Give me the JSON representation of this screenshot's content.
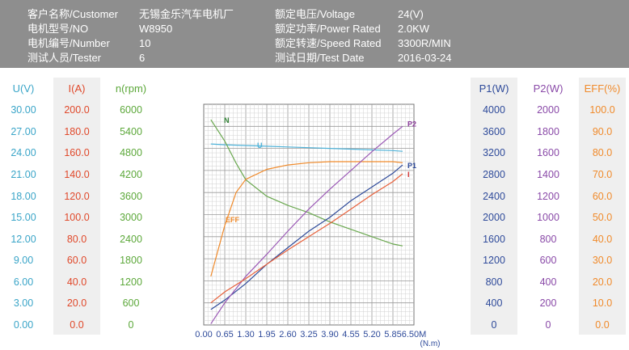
{
  "header": {
    "rows": [
      {
        "l1": "客户名称/Customer",
        "v1": "无锡金乐汽车电机厂",
        "l2": "额定电压/Voltage",
        "v2": "24(V)"
      },
      {
        "l1": "电机型号/NO",
        "v1": "W8950",
        "l2": "额定功率/Power Rated",
        "v2": "2.0KW"
      },
      {
        "l1": "电机编号/Number",
        "v1": "10",
        "l2": "额定转速/Speed Rated",
        "v2": "3300R/MIN"
      },
      {
        "l1": "测试人员/Tester",
        "v1": "6",
        "l2": "测试日期/Test Date",
        "v2": "2016-03-24"
      }
    ]
  },
  "left_columns": [
    {
      "title": "U(V)",
      "color": "#3aa5c8",
      "bg": "#ffffff",
      "values": [
        "30.00",
        "27.00",
        "24.00",
        "21.00",
        "18.00",
        "15.00",
        "12.00",
        "9.00",
        "6.00",
        "3.00",
        "0.00"
      ]
    },
    {
      "title": "I(A)",
      "color": "#e0482a",
      "bg": "#efefef",
      "values": [
        "200.0",
        "180.0",
        "160.0",
        "140.0",
        "120.0",
        "100.0",
        "80.0",
        "60.0",
        "40.0",
        "20.0",
        "0.0"
      ]
    },
    {
      "title": "n(rpm)",
      "color": "#5ca83a",
      "bg": "#ffffff",
      "values": [
        "6000",
        "5400",
        "4800",
        "4200",
        "3600",
        "3000",
        "2400",
        "1800",
        "1200",
        "600",
        "0"
      ]
    }
  ],
  "right_columns": [
    {
      "title": "P1(W)",
      "color": "#2e4a9a",
      "bg": "#efefef",
      "values": [
        "4000",
        "3600",
        "3200",
        "2800",
        "2400",
        "2000",
        "1600",
        "1200",
        "800",
        "400",
        "0"
      ]
    },
    {
      "title": "P2(W)",
      "color": "#8a4aa8",
      "bg": "#ffffff",
      "values": [
        "2000",
        "1800",
        "1600",
        "1400",
        "1200",
        "1000",
        "800",
        "600",
        "400",
        "200",
        "0"
      ]
    },
    {
      "title": "EFF(%)",
      "color": "#f08a2a",
      "bg": "#efefef",
      "values": [
        "100.0",
        "90.0",
        "80.0",
        "70.0",
        "60.0",
        "50.0",
        "40.0",
        "30.0",
        "20.0",
        "10.0",
        "0.0"
      ]
    }
  ],
  "chart_data": {
    "type": "line",
    "xlabel": "(N.m)",
    "x_ticks": [
      "0.00",
      "0.65",
      "1.30",
      "1.95",
      "2.60",
      "3.25",
      "3.90",
      "4.55",
      "5.20",
      "5.85",
      "6.50M"
    ],
    "xlim": [
      0,
      6.5
    ],
    "grid": true,
    "series": [
      {
        "name": "U",
        "color": "#4fb3d9",
        "label_color": "#4fb3d9",
        "x": [
          0.22,
          0.65,
          1.3,
          1.95,
          2.6,
          3.25,
          3.9,
          4.55,
          5.2,
          5.85,
          6.15
        ],
        "y": [
          24.6,
          24.5,
          24.4,
          24.3,
          24.2,
          24.1,
          24.0,
          23.9,
          23.8,
          23.7,
          23.6
        ]
      },
      {
        "name": "N",
        "color": "#6aa84f",
        "label_color": "#2e7d32",
        "x": [
          0.22,
          0.65,
          1.0,
          1.3,
          1.95,
          2.6,
          3.25,
          3.9,
          4.55,
          5.2,
          5.85,
          6.15
        ],
        "y": [
          5580,
          5000,
          4400,
          3950,
          3500,
          3250,
          3050,
          2800,
          2600,
          2400,
          2200,
          2150
        ]
      },
      {
        "name": "EFF",
        "color": "#f08a2a",
        "label_color": "#f08a2a",
        "x": [
          0.22,
          0.65,
          1.0,
          1.3,
          1.95,
          2.6,
          3.25,
          3.9,
          4.55,
          5.2,
          5.85,
          6.15
        ],
        "y": [
          22,
          45,
          60,
          66,
          70.5,
          72.5,
          73.5,
          74,
          74,
          74,
          74,
          73.5
        ]
      },
      {
        "name": "P1",
        "color": "#2e4a9a",
        "label_color": "#2e4a9a",
        "x": [
          0.22,
          0.65,
          1.3,
          1.95,
          2.6,
          3.25,
          3.9,
          4.55,
          5.2,
          5.85,
          6.15
        ],
        "y": [
          280,
          450,
          750,
          1100,
          1400,
          1700,
          1950,
          2250,
          2500,
          2750,
          2900
        ]
      },
      {
        "name": "P2",
        "color": "#9b59b6",
        "label_color": "#8a3a9a",
        "x": [
          0.22,
          0.65,
          1.3,
          1.95,
          2.6,
          3.25,
          3.9,
          4.55,
          5.2,
          5.85,
          6.15
        ],
        "y": [
          10,
          200,
          440,
          640,
          850,
          1050,
          1230,
          1400,
          1570,
          1730,
          1800
        ]
      },
      {
        "name": "I",
        "color": "#e8603a",
        "label_color": "#d32f2f",
        "x": [
          0.22,
          0.65,
          1.3,
          1.95,
          2.6,
          3.25,
          3.9,
          4.55,
          5.2,
          5.85,
          6.15
        ],
        "y": [
          20,
          30,
          42,
          55,
          68,
          80,
          92,
          105,
          118,
          130,
          137
        ]
      }
    ]
  }
}
